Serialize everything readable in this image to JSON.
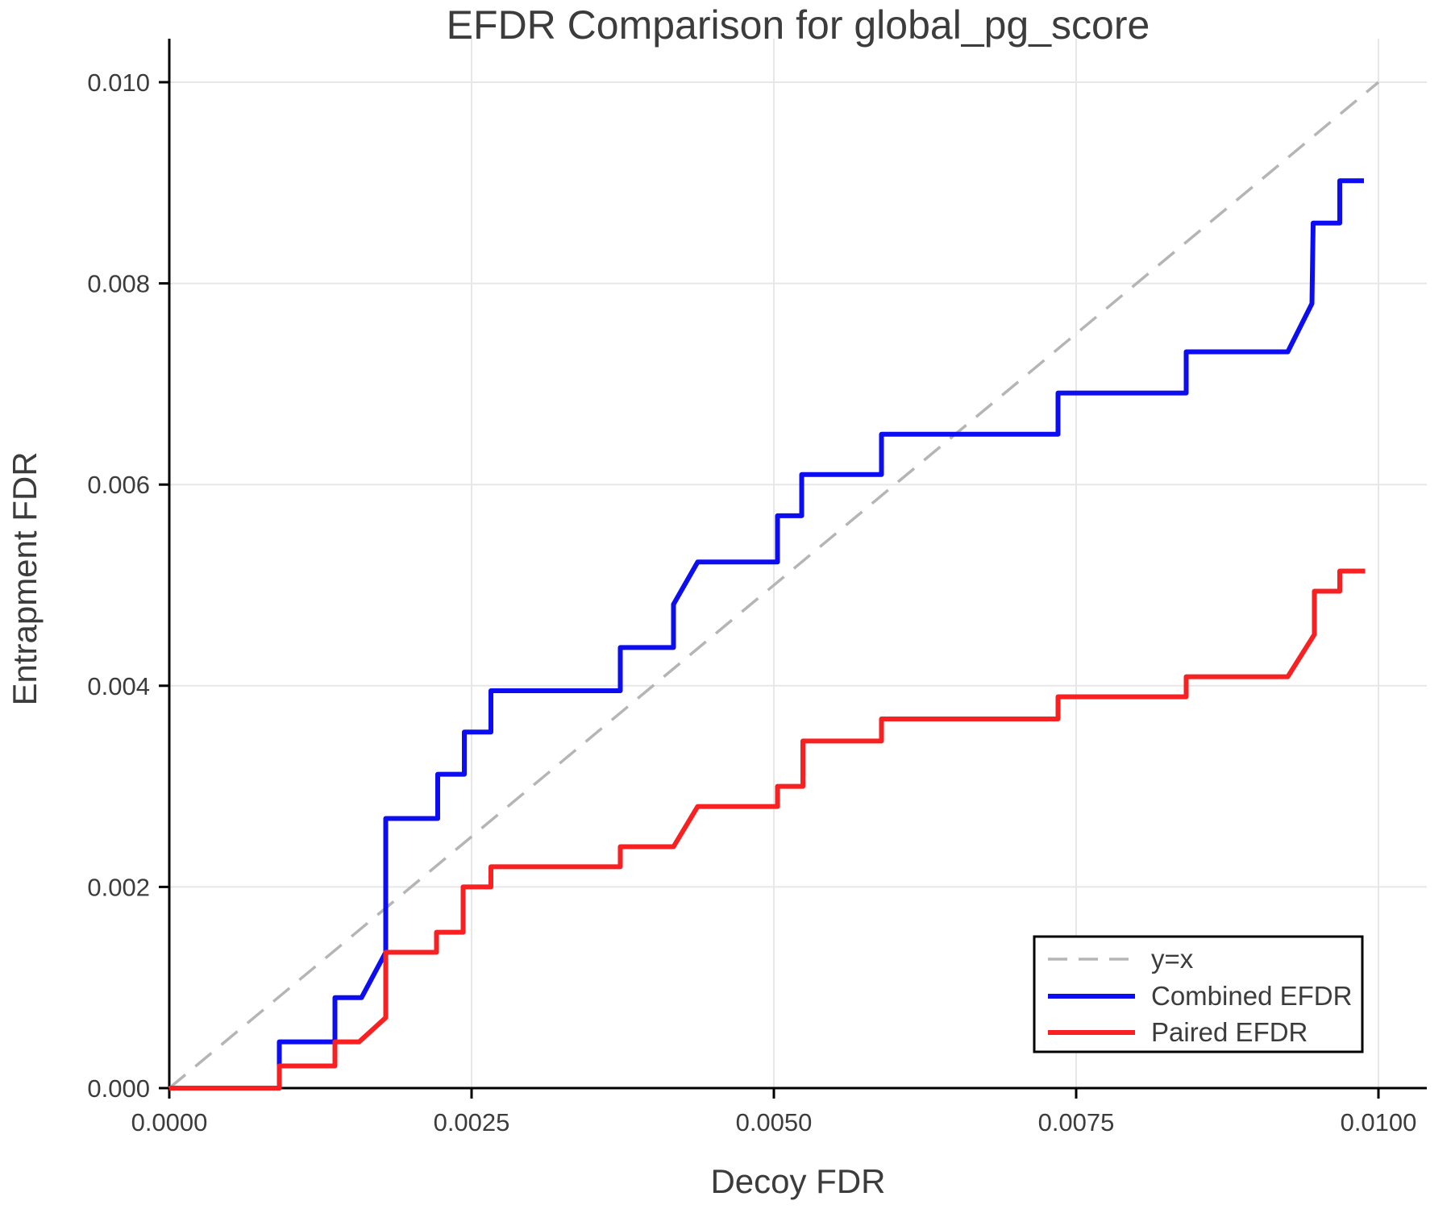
{
  "page": {
    "background": "#ffffff"
  },
  "chart_data": {
    "type": "line",
    "title": "EFDR Comparison for global_pg_score",
    "xlabel": "Decoy FDR",
    "ylabel": "Entrapment FDR",
    "xlim": [
      0,
      0.0104
    ],
    "ylim": [
      0,
      0.01042
    ],
    "grid": true,
    "legend_position": "lower right",
    "x_ticks": {
      "values": [
        0,
        0.0025,
        0.005,
        0.0075,
        0.01
      ],
      "labels": [
        "0.0000",
        "0.0025",
        "0.0050",
        "0.0075",
        "0.0100"
      ]
    },
    "y_ticks": {
      "values": [
        0,
        0.002,
        0.004,
        0.006,
        0.008,
        0.01
      ],
      "labels": [
        "0.000",
        "0.002",
        "0.004",
        "0.006",
        "0.008",
        "0.010"
      ]
    },
    "colors": {
      "identity": "#b5b5b5",
      "combined": "#0d0df2",
      "paired": "#f82020",
      "gridline": "#e7e7e7",
      "spine": "#000000",
      "text": "#3c3c3c"
    },
    "series": [
      {
        "name": "y=x",
        "style": "dashed",
        "color": "#b5b5b5",
        "points": [
          [
            0,
            0
          ],
          [
            0.01,
            0.01
          ]
        ]
      },
      {
        "name": "Combined EFDR",
        "style": "solid",
        "color": "#0d0df2",
        "points": [
          [
            0,
            0
          ],
          [
            0.00091,
            0
          ],
          [
            0.00091,
            0.00046
          ],
          [
            0.00137,
            0.00046
          ],
          [
            0.00137,
            0.0009
          ],
          [
            0.00159,
            0.0009
          ],
          [
            0.00179,
            0.00135
          ],
          [
            0.00179,
            0.00268
          ],
          [
            0.00222,
            0.00268
          ],
          [
            0.00222,
            0.00312
          ],
          [
            0.00244,
            0.00312
          ],
          [
            0.00244,
            0.00354
          ],
          [
            0.00266,
            0.00354
          ],
          [
            0.00266,
            0.00395
          ],
          [
            0.00373,
            0.00395
          ],
          [
            0.00373,
            0.00438
          ],
          [
            0.00417,
            0.00438
          ],
          [
            0.00417,
            0.00481
          ],
          [
            0.00437,
            0.00523
          ],
          [
            0.00503,
            0.00523
          ],
          [
            0.00503,
            0.00569
          ],
          [
            0.00523,
            0.00569
          ],
          [
            0.00523,
            0.0061
          ],
          [
            0.00589,
            0.0061
          ],
          [
            0.00589,
            0.0065
          ],
          [
            0.00735,
            0.0065
          ],
          [
            0.00735,
            0.00691
          ],
          [
            0.00841,
            0.00691
          ],
          [
            0.00841,
            0.00732
          ],
          [
            0.00925,
            0.00732
          ],
          [
            0.00945,
            0.0078
          ],
          [
            0.00946,
            0.0086
          ],
          [
            0.00968,
            0.0086
          ],
          [
            0.00968,
            0.00902
          ],
          [
            0.00988,
            0.00902
          ]
        ]
      },
      {
        "name": "Paired EFDR",
        "style": "solid",
        "color": "#f82020",
        "points": [
          [
            0,
            0
          ],
          [
            0.00091,
            0
          ],
          [
            0.00091,
            0.00022
          ],
          [
            0.00137,
            0.00022
          ],
          [
            0.00137,
            0.00046
          ],
          [
            0.00157,
            0.00046
          ],
          [
            0.00179,
            0.0007
          ],
          [
            0.00179,
            0.00135
          ],
          [
            0.00221,
            0.00135
          ],
          [
            0.00221,
            0.00155
          ],
          [
            0.00243,
            0.00155
          ],
          [
            0.00243,
            0.002
          ],
          [
            0.00266,
            0.002
          ],
          [
            0.00266,
            0.0022
          ],
          [
            0.00373,
            0.0022
          ],
          [
            0.00373,
            0.0024
          ],
          [
            0.00417,
            0.0024
          ],
          [
            0.00437,
            0.0028
          ],
          [
            0.00503,
            0.0028
          ],
          [
            0.00503,
            0.003
          ],
          [
            0.00524,
            0.003
          ],
          [
            0.00524,
            0.00345
          ],
          [
            0.00589,
            0.00345
          ],
          [
            0.00589,
            0.00367
          ],
          [
            0.00735,
            0.00367
          ],
          [
            0.00735,
            0.00389
          ],
          [
            0.00841,
            0.00389
          ],
          [
            0.00841,
            0.00409
          ],
          [
            0.00925,
            0.00409
          ],
          [
            0.00947,
            0.00451
          ],
          [
            0.00947,
            0.00494
          ],
          [
            0.00968,
            0.00494
          ],
          [
            0.00968,
            0.00514
          ],
          [
            0.00989,
            0.00514
          ]
        ]
      }
    ],
    "legend": [
      {
        "label": "y=x"
      },
      {
        "label": "Combined EFDR"
      },
      {
        "label": "Paired EFDR"
      }
    ]
  }
}
